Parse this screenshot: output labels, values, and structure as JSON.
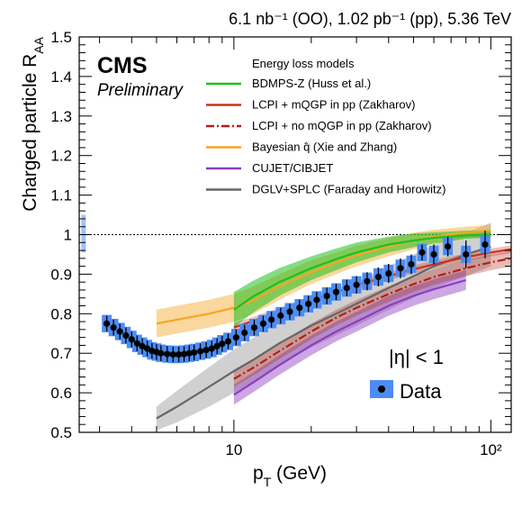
{
  "header": {
    "lumi_text": "6.1 nb⁻¹ (OO), 1.02 pb⁻¹ (pp), 5.36 TeV"
  },
  "labels": {
    "experiment": "CMS",
    "status": "Preliminary",
    "eta_cut": "|η| < 1"
  },
  "chart_data": {
    "type": "line",
    "title": "",
    "xlabel": "p_T (GeV)",
    "ylabel": "Charged particle R_AA",
    "x_scale": "log",
    "xlim": [
      2.5,
      120
    ],
    "ylim": [
      0.5,
      1.5
    ],
    "x_tick_labels": [
      "10",
      "10²"
    ],
    "y_tick_labels": [
      "0.5",
      "0.6",
      "0.7",
      "0.8",
      "0.9",
      "1",
      "1.1",
      "1.2",
      "1.3",
      "1.4",
      "1.5"
    ],
    "reference_line": 1.0,
    "legend_header": "Energy loss models",
    "normalization_uncertainty": {
      "x": 2.6,
      "low": 0.955,
      "high": 1.05,
      "color": "#9fc3f5"
    },
    "series": [
      {
        "name": "Data",
        "kind": "points",
        "color": "#000000",
        "box_color": "#4d8cf5",
        "x": [
          3.2,
          3.4,
          3.6,
          3.8,
          4.0,
          4.2,
          4.4,
          4.6,
          4.8,
          5.0,
          5.2,
          5.5,
          5.8,
          6.1,
          6.4,
          6.7,
          7.0,
          7.4,
          7.8,
          8.2,
          8.6,
          9.0,
          9.5,
          10.2,
          11.0,
          12.0,
          13.0,
          14.0,
          15.2,
          16.5,
          18.0,
          19.5,
          21.0,
          23.0,
          25.0,
          27.5,
          30.0,
          33.0,
          36.5,
          40.0,
          44.5,
          49.0,
          54.0,
          60.0,
          68.0,
          80.0,
          95.0
        ],
        "y": [
          0.775,
          0.765,
          0.755,
          0.745,
          0.735,
          0.725,
          0.718,
          0.712,
          0.706,
          0.703,
          0.7,
          0.698,
          0.697,
          0.697,
          0.698,
          0.7,
          0.702,
          0.705,
          0.708,
          0.712,
          0.718,
          0.724,
          0.73,
          0.74,
          0.752,
          0.765,
          0.775,
          0.785,
          0.795,
          0.805,
          0.815,
          0.825,
          0.835,
          0.845,
          0.855,
          0.865,
          0.873,
          0.882,
          0.893,
          0.902,
          0.915,
          0.925,
          0.955,
          0.95,
          0.97,
          0.95,
          0.975
        ],
        "err_high": [
          0.795,
          0.785,
          0.775,
          0.765,
          0.755,
          0.745,
          0.738,
          0.732,
          0.726,
          0.723,
          0.72,
          0.718,
          0.717,
          0.717,
          0.718,
          0.72,
          0.722,
          0.725,
          0.728,
          0.732,
          0.738,
          0.744,
          0.75,
          0.76,
          0.772,
          0.785,
          0.795,
          0.805,
          0.815,
          0.825,
          0.835,
          0.845,
          0.855,
          0.866,
          0.876,
          0.886,
          0.895,
          0.905,
          0.917,
          0.926,
          0.94,
          0.95,
          0.975,
          0.975,
          0.995,
          0.985,
          1.01
        ],
        "err_low": [
          0.755,
          0.745,
          0.735,
          0.725,
          0.715,
          0.705,
          0.698,
          0.692,
          0.686,
          0.683,
          0.68,
          0.678,
          0.677,
          0.677,
          0.678,
          0.68,
          0.682,
          0.685,
          0.688,
          0.692,
          0.698,
          0.704,
          0.71,
          0.72,
          0.732,
          0.745,
          0.755,
          0.765,
          0.775,
          0.785,
          0.795,
          0.805,
          0.815,
          0.824,
          0.834,
          0.844,
          0.851,
          0.859,
          0.869,
          0.878,
          0.89,
          0.9,
          0.935,
          0.925,
          0.945,
          0.915,
          0.94
        ]
      },
      {
        "name": "BDMPS-Z (Huss et al.)",
        "kind": "band",
        "color": "#1fbf1f",
        "x": [
          10,
          12,
          15,
          20,
          25,
          30,
          40,
          50,
          60,
          80,
          100
        ],
        "y": [
          0.81,
          0.845,
          0.88,
          0.915,
          0.938,
          0.955,
          0.975,
          0.985,
          0.992,
          0.998,
          1.0
        ],
        "low": [
          0.765,
          0.805,
          0.845,
          0.885,
          0.91,
          0.93,
          0.955,
          0.968,
          0.978,
          0.99,
          0.992
        ],
        "high": [
          0.855,
          0.885,
          0.915,
          0.945,
          0.965,
          0.98,
          0.995,
          1.003,
          1.006,
          1.01,
          1.01
        ]
      },
      {
        "name": "LCPI + mQGP in pp (Zakharov)",
        "kind": "band",
        "color": "#c8321e",
        "x": [
          10,
          12,
          15,
          20,
          25,
          30,
          40,
          50,
          60,
          80,
          100,
          120
        ],
        "y": [
          0.765,
          0.783,
          0.805,
          0.833,
          0.855,
          0.872,
          0.895,
          0.912,
          0.925,
          0.943,
          0.955,
          0.963
        ],
        "low": [
          0.755,
          0.773,
          0.795,
          0.823,
          0.845,
          0.862,
          0.885,
          0.902,
          0.915,
          0.933,
          0.945,
          0.953
        ],
        "high": [
          0.775,
          0.793,
          0.815,
          0.843,
          0.865,
          0.882,
          0.905,
          0.922,
          0.935,
          0.953,
          0.965,
          0.973
        ]
      },
      {
        "name": "LCPI + no mQGP in pp (Zakharov)",
        "kind": "band",
        "color": "#b41e14",
        "dashed": true,
        "x": [
          10,
          12,
          15,
          20,
          25,
          30,
          40,
          50,
          60,
          80,
          100,
          120
        ],
        "y": [
          0.635,
          0.665,
          0.705,
          0.755,
          0.79,
          0.815,
          0.85,
          0.875,
          0.893,
          0.915,
          0.93,
          0.94
        ],
        "low": [
          0.615,
          0.645,
          0.685,
          0.735,
          0.77,
          0.795,
          0.83,
          0.855,
          0.873,
          0.895,
          0.91,
          0.92
        ],
        "high": [
          0.655,
          0.685,
          0.725,
          0.775,
          0.81,
          0.835,
          0.87,
          0.895,
          0.913,
          0.935,
          0.95,
          0.96
        ]
      },
      {
        "name": "Bayesian q̂ (Xie and Zhang)",
        "kind": "band",
        "color": "#f5a623",
        "x": [
          5,
          6,
          8,
          10,
          12,
          15,
          20,
          25,
          30,
          40,
          50,
          60,
          80,
          100
        ],
        "y": [
          0.775,
          0.785,
          0.8,
          0.815,
          0.835,
          0.87,
          0.905,
          0.93,
          0.948,
          0.97,
          0.985,
          0.995,
          1.005,
          1.01
        ],
        "low": [
          0.74,
          0.75,
          0.765,
          0.78,
          0.8,
          0.835,
          0.875,
          0.9,
          0.92,
          0.945,
          0.963,
          0.975,
          0.99,
          0.995
        ],
        "high": [
          0.81,
          0.82,
          0.835,
          0.85,
          0.87,
          0.9,
          0.935,
          0.955,
          0.972,
          0.992,
          1.005,
          1.012,
          1.02,
          1.025
        ]
      },
      {
        "name": "CUJET/CIBJET",
        "kind": "band",
        "color": "#8e3cc0",
        "x": [
          10,
          12,
          15,
          20,
          25,
          30,
          40,
          50,
          60,
          80
        ],
        "y": [
          0.595,
          0.628,
          0.67,
          0.72,
          0.755,
          0.78,
          0.82,
          0.845,
          0.862,
          0.885
        ],
        "low": [
          0.57,
          0.603,
          0.645,
          0.695,
          0.73,
          0.755,
          0.795,
          0.82,
          0.837,
          0.86
        ],
        "high": [
          0.62,
          0.653,
          0.695,
          0.745,
          0.78,
          0.805,
          0.845,
          0.87,
          0.887,
          0.91
        ]
      },
      {
        "name": "DGLV+SPLC (Faraday and Horowitz)",
        "kind": "band",
        "color": "#666666",
        "x": [
          5,
          6,
          8,
          10,
          12,
          15,
          20,
          25,
          30,
          40,
          50,
          60,
          80,
          100
        ],
        "y": [
          0.535,
          0.565,
          0.615,
          0.655,
          0.685,
          0.725,
          0.77,
          0.8,
          0.825,
          0.865,
          0.895,
          0.92,
          0.95,
          0.97
        ],
        "low": [
          0.505,
          0.525,
          0.565,
          0.6,
          0.63,
          0.67,
          0.715,
          0.745,
          0.77,
          0.81,
          0.84,
          0.865,
          0.895,
          0.92
        ],
        "high": [
          0.565,
          0.605,
          0.665,
          0.71,
          0.74,
          0.78,
          0.825,
          0.855,
          0.88,
          0.92,
          0.95,
          0.975,
          1.005,
          1.03
        ]
      }
    ]
  }
}
